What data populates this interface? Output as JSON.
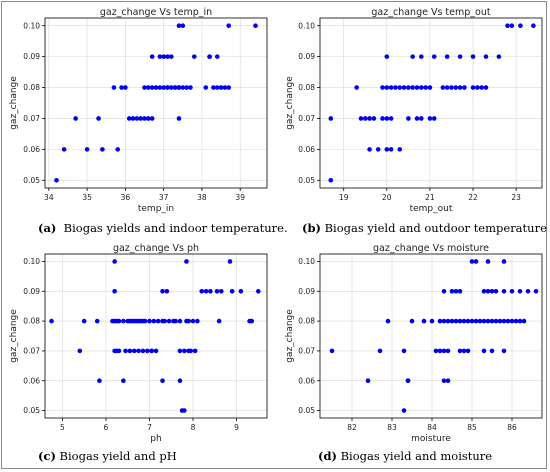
{
  "colors": {
    "point": "#0000ee",
    "axis": "#000000",
    "grid": "#d9d9d9"
  },
  "chart_data": [
    {
      "type": "scatter",
      "title": "gaz_change Vs temp_in",
      "xlabel": "temp_in",
      "ylabel": "gaz_change",
      "xlim": [
        33.9,
        39.7
      ],
      "ylim": [
        0.0475,
        0.1025
      ],
      "xticks": [
        34,
        35,
        36,
        37,
        38,
        39
      ],
      "yticks": [
        0.05,
        0.06,
        0.07,
        0.08,
        0.09,
        0.1
      ],
      "grid": true,
      "x": [
        34.2,
        34.4,
        34.7,
        35.0,
        35.3,
        35.4,
        35.7,
        35.8,
        35.9,
        36.0,
        36.1,
        36.2,
        36.3,
        36.4,
        36.5,
        36.6,
        36.7,
        36.5,
        36.6,
        36.7,
        36.8,
        36.9,
        37.0,
        37.1,
        36.7,
        36.9,
        37.0,
        37.1,
        37.2,
        37.3,
        37.4,
        37.5,
        37.6,
        37.7,
        37.1,
        37.2,
        37.3,
        37.4,
        37.8,
        38.2,
        38.4,
        38.3,
        38.4,
        38.5,
        38.6,
        38.7,
        38.1,
        38.2,
        37.4,
        37.4,
        37.5,
        38.7,
        39.4
      ],
      "y": [
        0.05,
        0.06,
        0.07,
        0.06,
        0.07,
        0.06,
        0.08,
        0.06,
        0.08,
        0.08,
        0.07,
        0.07,
        0.07,
        0.07,
        0.07,
        0.07,
        0.07,
        0.08,
        0.08,
        0.08,
        0.08,
        0.08,
        0.08,
        0.08,
        0.09,
        0.09,
        0.09,
        0.09,
        0.09,
        0.08,
        0.08,
        0.08,
        0.08,
        0.08,
        0.08,
        0.08,
        0.08,
        0.08,
        0.09,
        0.09,
        0.09,
        0.08,
        0.08,
        0.08,
        0.08,
        0.08,
        0.08,
        0.09,
        0.07,
        0.1,
        0.1,
        0.1,
        0.1
      ],
      "caption_letter": "(a)",
      "caption_text": "Biogas yields and indoor temperature."
    },
    {
      "type": "scatter",
      "title": "gaz_change Vs temp_out",
      "xlabel": "temp_out",
      "ylabel": "gaz_change",
      "xlim": [
        18.45,
        23.6
      ],
      "ylim": [
        0.0475,
        0.1025
      ],
      "xticks": [
        19,
        20,
        21,
        22,
        23
      ],
      "yticks": [
        0.05,
        0.06,
        0.07,
        0.08,
        0.09,
        0.1
      ],
      "grid": true,
      "x": [
        18.7,
        18.7,
        19.3,
        19.4,
        19.5,
        19.6,
        19.8,
        19.6,
        19.7,
        19.9,
        20.0,
        20.1,
        19.9,
        20.0,
        20.1,
        20.2,
        20.3,
        20.4,
        20.5,
        20.6,
        20.7,
        20.8,
        20.9,
        21.0,
        21.3,
        21.4,
        21.5,
        21.6,
        21.7,
        21.8,
        22.0,
        22.1,
        22.2,
        22.3,
        20.0,
        20.6,
        20.8,
        21.1,
        21.4,
        21.7,
        22.0,
        22.3,
        22.6,
        20.5,
        20.7,
        20.8,
        21.0,
        21.1,
        20.0,
        20.1,
        20.3,
        22.8,
        22.9,
        23.1,
        23.4
      ],
      "y": [
        0.05,
        0.07,
        0.08,
        0.07,
        0.07,
        0.06,
        0.06,
        0.07,
        0.07,
        0.07,
        0.07,
        0.07,
        0.08,
        0.08,
        0.08,
        0.08,
        0.08,
        0.08,
        0.08,
        0.08,
        0.08,
        0.08,
        0.08,
        0.08,
        0.08,
        0.08,
        0.08,
        0.08,
        0.08,
        0.08,
        0.08,
        0.08,
        0.08,
        0.08,
        0.09,
        0.09,
        0.09,
        0.09,
        0.09,
        0.09,
        0.09,
        0.09,
        0.09,
        0.07,
        0.07,
        0.07,
        0.07,
        0.07,
        0.06,
        0.06,
        0.06,
        0.1,
        0.1,
        0.1,
        0.1
      ],
      "caption_letter": "(b)",
      "caption_text": "Biogas yield and outdoor temperature"
    },
    {
      "type": "scatter",
      "title": "gaz_change Vs ph",
      "xlabel": "ph",
      "ylabel": "gaz_change",
      "xlim": [
        4.6,
        9.7
      ],
      "ylim": [
        0.0475,
        0.1025
      ],
      "xticks": [
        5,
        6,
        7,
        8,
        9
      ],
      "yticks": [
        0.05,
        0.06,
        0.07,
        0.08,
        0.09,
        0.1
      ],
      "grid": true,
      "x": [
        4.75,
        5.4,
        5.5,
        5.8,
        5.85,
        6.15,
        6.2,
        6.25,
        6.3,
        6.4,
        6.5,
        6.55,
        6.6,
        6.65,
        6.7,
        6.75,
        6.8,
        6.85,
        6.9,
        7.0,
        7.1,
        7.2,
        7.3,
        7.35,
        7.45,
        7.55,
        7.6,
        7.7,
        7.85,
        7.9,
        8.0,
        6.3,
        6.45,
        6.55,
        6.65,
        6.75,
        6.85,
        6.95,
        7.05,
        7.15,
        7.7,
        7.8,
        7.95,
        8.05,
        6.2,
        7.3,
        7.4,
        8.2,
        8.3,
        8.4,
        8.55,
        8.65,
        8.9,
        9.1,
        9.5,
        6.2,
        6.25,
        7.05,
        7.9,
        8.1,
        8.6,
        9.3,
        6.4,
        7.3,
        7.7,
        7.8,
        6.2,
        7.85,
        8.85,
        9.35,
        7.75
      ],
      "y": [
        0.08,
        0.07,
        0.08,
        0.08,
        0.06,
        0.08,
        0.08,
        0.08,
        0.08,
        0.08,
        0.08,
        0.08,
        0.08,
        0.08,
        0.08,
        0.08,
        0.08,
        0.08,
        0.08,
        0.08,
        0.08,
        0.08,
        0.08,
        0.08,
        0.08,
        0.08,
        0.08,
        0.08,
        0.08,
        0.08,
        0.08,
        0.07,
        0.07,
        0.07,
        0.07,
        0.07,
        0.07,
        0.07,
        0.07,
        0.07,
        0.07,
        0.07,
        0.07,
        0.07,
        0.09,
        0.09,
        0.09,
        0.09,
        0.09,
        0.09,
        0.09,
        0.09,
        0.09,
        0.09,
        0.09,
        0.07,
        0.07,
        0.07,
        0.07,
        0.08,
        0.08,
        0.08,
        0.06,
        0.06,
        0.06,
        0.05,
        0.1,
        0.1,
        0.1,
        0.08,
        0.05
      ],
      "caption_letter": "(c)",
      "caption_text": "Biogas yield and pH"
    },
    {
      "type": "scatter",
      "title": "gaz_change Vs moisture",
      "xlabel": "moisture",
      "ylabel": "gaz_change",
      "xlim": [
        81.2,
        86.75
      ],
      "ylim": [
        0.0475,
        0.1025
      ],
      "xticks": [
        82,
        83,
        84,
        85,
        86
      ],
      "yticks": [
        0.05,
        0.06,
        0.07,
        0.08,
        0.09,
        0.1
      ],
      "grid": true,
      "x": [
        81.5,
        82.4,
        82.7,
        82.9,
        83.3,
        83.4,
        83.5,
        83.8,
        84.0,
        84.1,
        84.2,
        84.3,
        84.4,
        84.5,
        84.6,
        84.7,
        84.8,
        84.9,
        85.0,
        85.1,
        85.2,
        85.3,
        85.4,
        85.5,
        85.6,
        85.7,
        85.8,
        85.9,
        86.0,
        86.1,
        86.2,
        86.3,
        84.2,
        84.3,
        84.4,
        84.7,
        84.8,
        84.9,
        85.3,
        85.5,
        85.8,
        84.3,
        84.5,
        84.6,
        84.7,
        85.3,
        85.4,
        85.5,
        85.6,
        85.8,
        86.0,
        86.2,
        86.4,
        86.6,
        85.0,
        85.1,
        85.4,
        85.8,
        84.3,
        84.4,
        83.3,
        83.4
      ],
      "y": [
        0.07,
        0.06,
        0.07,
        0.08,
        0.07,
        0.06,
        0.08,
        0.08,
        0.08,
        0.07,
        0.08,
        0.08,
        0.08,
        0.08,
        0.08,
        0.08,
        0.08,
        0.08,
        0.08,
        0.08,
        0.08,
        0.08,
        0.08,
        0.08,
        0.08,
        0.08,
        0.08,
        0.08,
        0.08,
        0.08,
        0.08,
        0.08,
        0.07,
        0.07,
        0.07,
        0.07,
        0.07,
        0.07,
        0.07,
        0.07,
        0.07,
        0.09,
        0.09,
        0.09,
        0.09,
        0.09,
        0.09,
        0.09,
        0.09,
        0.09,
        0.09,
        0.09,
        0.09,
        0.09,
        0.1,
        0.1,
        0.1,
        0.1,
        0.06,
        0.06,
        0.05,
        0.06
      ],
      "caption_letter": "(d)",
      "caption_text": "Biogas yield and moisture"
    }
  ]
}
